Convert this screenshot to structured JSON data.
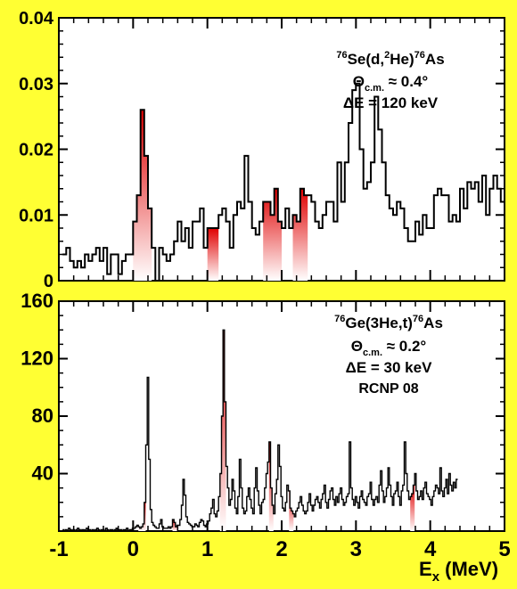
{
  "colors": {
    "background": "#ffff33",
    "panel": "#ffffff",
    "line": "#000000",
    "peak_fill": "#e00000"
  },
  "chart_data": [
    {
      "type": "line",
      "panel": "top",
      "xlim": [
        -1,
        5
      ],
      "ylim": [
        0,
        0.04
      ],
      "y_ticks": [
        "0",
        "0.01",
        "0.02",
        "0.03",
        "0.04"
      ],
      "x_ticks": [],
      "annotation": {
        "reaction_pre": "76",
        "reaction_mid": "Se(d,",
        "reaction_sup2": "2",
        "reaction_mid2": "He)",
        "reaction_sup3": "76",
        "reaction_end": "As",
        "theta_main": "Θ",
        "theta_sub": "c.m.",
        "theta_value": " ≈ 0.4°",
        "energy": "ΔE = 120 keV"
      },
      "bin_width": 0.05,
      "x_start": -0.95,
      "values": [
        0.004,
        0.005,
        0.003,
        0.002,
        0.003,
        0.002,
        0.004,
        0.003,
        0.004,
        0.005,
        0.003,
        0.005,
        0.001,
        0.004,
        0.004,
        0.001,
        0.003,
        0.004,
        0.004,
        0.009,
        0.013,
        0.026,
        0.019,
        0.011,
        0.005,
        0.0,
        0.005,
        0.004,
        0.003,
        0.004,
        0.006,
        0.009,
        0.006,
        0.008,
        0.005,
        0.009,
        0.009,
        0.011,
        0.005,
        0.008,
        0.008,
        0.008,
        0.01,
        0.011,
        0.009,
        0.005,
        0.01,
        0.012,
        0.011,
        0.019,
        0.012,
        0.008,
        0.007,
        0.009,
        0.012,
        0.012,
        0.01,
        0.014,
        0.009,
        0.008,
        0.011,
        0.008,
        0.01,
        0.009,
        0.014,
        0.013,
        0.013,
        0.012,
        0.009,
        0.008,
        0.01,
        0.012,
        0.012,
        0.009,
        0.018,
        0.012,
        0.018,
        0.024,
        0.029,
        0.03,
        0.02,
        0.014,
        0.015,
        0.018,
        0.028,
        0.023,
        0.018,
        0.013,
        0.011,
        0.01,
        0.012,
        0.011,
        0.008,
        0.006,
        0.006,
        0.009,
        0.007,
        0.01,
        0.008,
        0.008,
        0.013,
        0.014,
        0.013,
        0.013,
        0.009,
        0.01,
        0.009,
        0.014,
        0.011,
        0.015,
        0.014,
        0.015,
        0.012,
        0.016,
        0.01,
        0.014,
        0.016,
        0.014,
        0.012,
        0.017
      ],
      "peak_ranges": [
        [
          0.0,
          0.25
        ],
        [
          1.0,
          1.15
        ],
        [
          1.75,
          2.0
        ],
        [
          2.15,
          2.35
        ]
      ]
    },
    {
      "type": "line",
      "panel": "bottom",
      "xlim": [
        -1,
        5
      ],
      "ylim": [
        0,
        160
      ],
      "y_ticks": [
        "40",
        "80",
        "120",
        "160"
      ],
      "x_ticks": [
        "-1",
        "0",
        "1",
        "2",
        "3",
        "4",
        "5"
      ],
      "xlabel_main": "E",
      "xlabel_sub": "x",
      "xlabel_unit": " (MeV)",
      "annotation": {
        "reaction_pre": "76",
        "reaction_mid": "Ge(3He,t)",
        "reaction_sup3": "76",
        "reaction_end": "As",
        "theta_main": "Θ",
        "theta_sub": "c.m.",
        "theta_value": " ≈ 0.2°",
        "energy": "ΔE = 30 keV",
        "run": "RCNP 08"
      },
      "bin_width": 0.02,
      "x_start": -0.95,
      "values": [
        1,
        0,
        1,
        0,
        2,
        1,
        0,
        1,
        0,
        1,
        2,
        1,
        0,
        1,
        1,
        0,
        2,
        1,
        1,
        0,
        1,
        0,
        1,
        2,
        1,
        0,
        1,
        1,
        0,
        2,
        1,
        0,
        1,
        1,
        0,
        1,
        2,
        0,
        1,
        1,
        0,
        1,
        1,
        2,
        0,
        1,
        1,
        2,
        2,
        3,
        4,
        3,
        2,
        3,
        5,
        20,
        60,
        107,
        50,
        15,
        6,
        4,
        3,
        2,
        2,
        5,
        8,
        3,
        2,
        2,
        2,
        3,
        2,
        3,
        8,
        6,
        3,
        4,
        4,
        8,
        18,
        36,
        25,
        10,
        6,
        5,
        4,
        3,
        3,
        5,
        4,
        3,
        6,
        8,
        7,
        4,
        3,
        5,
        7,
        12,
        16,
        22,
        12,
        10,
        14,
        24,
        40,
        80,
        140,
        90,
        45,
        30,
        18,
        22,
        36,
        28,
        16,
        12,
        24,
        50,
        30,
        16,
        12,
        14,
        24,
        30,
        22,
        16,
        12,
        30,
        44,
        28,
        18,
        12,
        20,
        22,
        30,
        40,
        48,
        62,
        30,
        18,
        12,
        26,
        36,
        60,
        45,
        24,
        16,
        14,
        20,
        32,
        28,
        16,
        14,
        12,
        10,
        14,
        16,
        20,
        24,
        18,
        14,
        12,
        14,
        20,
        26,
        18,
        14,
        18,
        22,
        24,
        20,
        16,
        22,
        26,
        32,
        20,
        16,
        22,
        28,
        30,
        22,
        18,
        24,
        20,
        26,
        30,
        22,
        18,
        20,
        24,
        26,
        62,
        30,
        22,
        18,
        24,
        20,
        16,
        24,
        28,
        22,
        20,
        18,
        24,
        26,
        34,
        22,
        18,
        22,
        24,
        20,
        32,
        42,
        28,
        20,
        24,
        30,
        44,
        32,
        24,
        18,
        26,
        28,
        34,
        24,
        18,
        28,
        32,
        62,
        40,
        28,
        22,
        24,
        26,
        32,
        40,
        28,
        22,
        24,
        28,
        22,
        30,
        34,
        26,
        24,
        22,
        18,
        24,
        28,
        32,
        30,
        26,
        44,
        28,
        24,
        30,
        36,
        26,
        40,
        32,
        28,
        34,
        30,
        36
      ],
      "peak_ranges": [
        [
          0.07,
          0.17
        ],
        [
          0.53,
          0.6
        ],
        [
          1.17,
          1.25
        ],
        [
          1.83,
          1.89
        ],
        [
          2.1,
          2.16
        ],
        [
          3.73,
          3.79
        ],
        [
          4.43,
          4.49
        ]
      ]
    }
  ]
}
